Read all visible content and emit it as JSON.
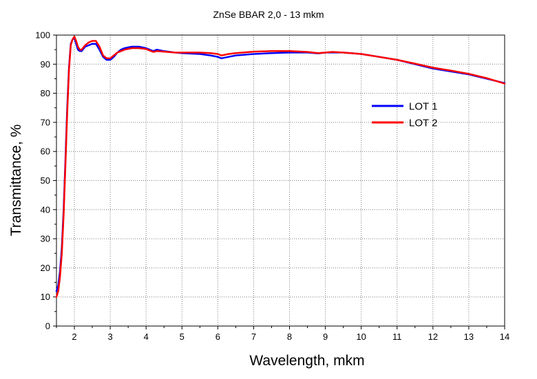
{
  "chart_data": {
    "type": "line",
    "title": "ZnSe BBAR 2,0 - 13 mkm",
    "xlabel": "Wavelength, mkm",
    "ylabel": "Transmittance, %",
    "xlim": [
      1.5,
      14
    ],
    "ylim": [
      0,
      100
    ],
    "xticks": [
      2,
      3,
      4,
      5,
      6,
      7,
      8,
      9,
      10,
      11,
      12,
      13,
      14
    ],
    "yticks": [
      0,
      10,
      20,
      30,
      40,
      50,
      60,
      70,
      80,
      90,
      100
    ],
    "grid": true,
    "legend_position": "right",
    "series": [
      {
        "name": "LOT 1",
        "color": "#0000ff",
        "x": [
          1.5,
          1.55,
          1.6,
          1.65,
          1.7,
          1.75,
          1.8,
          1.85,
          1.9,
          1.95,
          2.0,
          2.05,
          2.1,
          2.15,
          2.2,
          2.3,
          2.4,
          2.5,
          2.6,
          2.7,
          2.8,
          2.9,
          3.0,
          3.1,
          3.2,
          3.3,
          3.4,
          3.6,
          3.8,
          4.0,
          4.2,
          4.3,
          4.5,
          4.8,
          5.0,
          5.5,
          5.8,
          6.0,
          6.1,
          6.3,
          6.5,
          7.0,
          7.5,
          8.0,
          8.5,
          8.8,
          9.0,
          9.2,
          9.5,
          10.0,
          10.5,
          11.0,
          11.5,
          12.0,
          12.5,
          13.0,
          13.5,
          14.0
        ],
        "y": [
          12,
          14,
          19,
          27,
          40,
          57,
          75,
          89,
          97,
          98.5,
          99,
          97,
          95,
          94.5,
          94.5,
          96,
          96.5,
          97,
          97,
          95,
          92.5,
          91.5,
          91.5,
          92.5,
          94,
          95,
          95.5,
          96,
          96,
          95.5,
          94.5,
          95,
          94.5,
          94,
          93.8,
          93.5,
          93,
          92.5,
          92,
          92.5,
          93,
          93.5,
          93.8,
          94,
          94,
          93.7,
          94,
          94,
          94,
          93.5,
          92.5,
          91.5,
          90,
          88.5,
          87.5,
          86.5,
          85,
          83.5
        ]
      },
      {
        "name": "LOT 2",
        "color": "#ff0000",
        "x": [
          1.5,
          1.55,
          1.6,
          1.65,
          1.7,
          1.75,
          1.8,
          1.85,
          1.9,
          1.95,
          2.0,
          2.05,
          2.1,
          2.15,
          2.2,
          2.3,
          2.4,
          2.5,
          2.6,
          2.7,
          2.8,
          2.9,
          3.0,
          3.1,
          3.2,
          3.3,
          3.4,
          3.6,
          3.8,
          4.0,
          4.2,
          4.3,
          4.5,
          4.8,
          5.0,
          5.5,
          5.8,
          6.0,
          6.1,
          6.3,
          6.5,
          7.0,
          7.5,
          8.0,
          8.5,
          8.8,
          9.0,
          9.2,
          9.5,
          10.0,
          10.5,
          11.0,
          11.5,
          12.0,
          12.5,
          13.0,
          13.5,
          14.0
        ],
        "y": [
          10,
          12,
          17,
          25,
          38,
          55,
          73,
          88,
          96.5,
          98.5,
          99.5,
          98,
          96,
          95,
          95,
          96.5,
          97.5,
          98,
          98,
          96,
          93,
          92,
          92,
          93,
          94,
          94.5,
          95,
          95.5,
          95.5,
          95.2,
          94.2,
          94.5,
          94.3,
          94,
          94,
          94,
          93.8,
          93.5,
          93,
          93.5,
          93.8,
          94.3,
          94.5,
          94.5,
          94.2,
          93.8,
          94,
          94.2,
          94,
          93.5,
          92.5,
          91.5,
          90.2,
          88.8,
          87.8,
          86.7,
          85.2,
          83.3
        ]
      }
    ]
  }
}
